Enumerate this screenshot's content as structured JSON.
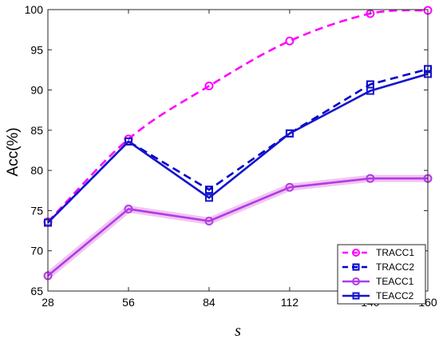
{
  "chart_data": {
    "type": "line",
    "xlabel": "s",
    "ylabel": "Acc(%)",
    "x": [
      28,
      56,
      84,
      112,
      140,
      160
    ],
    "x_tick_labels": [
      "28",
      "56",
      "84",
      "112",
      "140",
      "160"
    ],
    "ylim": [
      65,
      100
    ],
    "y_ticks": [
      65,
      70,
      75,
      80,
      85,
      90,
      95,
      100
    ],
    "y_tick_labels": [
      "65",
      "70",
      "75",
      "80",
      "85",
      "90",
      "95",
      "100"
    ],
    "grid": false,
    "legend_position": "bottom-right",
    "series": [
      {
        "name": "TRACC1",
        "values": [
          73.6,
          83.9,
          90.5,
          96.1,
          99.5,
          99.9
        ],
        "color": "#ff00ff",
        "dash": "dashed",
        "marker": "circle"
      },
      {
        "name": "TRACC2",
        "values": [
          73.5,
          83.6,
          77.6,
          84.6,
          90.7,
          92.6
        ],
        "color": "#0000cc",
        "dash": "dashed",
        "marker": "square"
      },
      {
        "name": "TEACC1",
        "values": [
          66.9,
          75.2,
          73.7,
          77.9,
          79.0,
          79.0
        ],
        "color": "#b13ce6",
        "dash": "solid",
        "marker": "circle"
      },
      {
        "name": "TEACC2",
        "values": [
          73.5,
          83.6,
          76.6,
          84.6,
          89.9,
          92.0
        ],
        "color": "#1515cc",
        "dash": "solid",
        "marker": "square"
      }
    ]
  }
}
